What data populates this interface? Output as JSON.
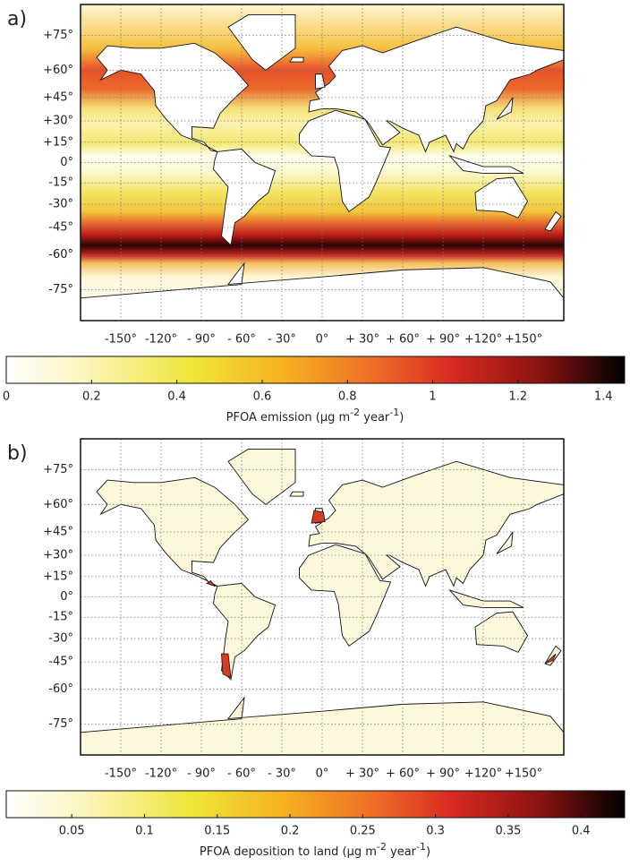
{
  "panels": [
    {
      "label": "a)",
      "lat_ticks": [
        {
          "value": 75,
          "label": "+75°"
        },
        {
          "value": 60,
          "label": "+60°"
        },
        {
          "value": 45,
          "label": "+45°"
        },
        {
          "value": 30,
          "label": "+30°"
        },
        {
          "value": 15,
          "label": "+15°"
        },
        {
          "value": 0,
          "label": "0°"
        },
        {
          "value": -15,
          "label": "-15°"
        },
        {
          "value": -30,
          "label": "-30°"
        },
        {
          "value": -45,
          "label": "-45°"
        },
        {
          "value": -60,
          "label": "-60°"
        },
        {
          "value": -75,
          "label": "-75°"
        }
      ],
      "lon_ticks": [
        {
          "value": -150,
          "label": "-150°"
        },
        {
          "value": -120,
          "label": "-120°"
        },
        {
          "value": -90,
          "label": "- 90°"
        },
        {
          "value": -60,
          "label": "- 60°"
        },
        {
          "value": -30,
          "label": "- 30°"
        },
        {
          "value": 0,
          "label": "0°"
        },
        {
          "value": 30,
          "label": "+ 30°"
        },
        {
          "value": 60,
          "label": "+ 60°"
        },
        {
          "value": 90,
          "label": "+ 90°"
        },
        {
          "value": 120,
          "label": "+120°"
        },
        {
          "value": 150,
          "label": "+150°"
        }
      ],
      "lonlim": [
        -180,
        180
      ],
      "latlim": [
        -85,
        85
      ],
      "colorbar": {
        "lim": [
          0,
          1.45
        ],
        "ticks": [
          0,
          0.2,
          0.4,
          0.6,
          0.8,
          1,
          1.2,
          1.4
        ],
        "title_parts": [
          "PFOA emission (μg m",
          "-2",
          " year",
          "-1",
          ")"
        ]
      }
    },
    {
      "label": "b)",
      "lat_ticks": [
        {
          "value": 75,
          "label": "+75°"
        },
        {
          "value": 60,
          "label": "+60°"
        },
        {
          "value": 45,
          "label": "+45°"
        },
        {
          "value": 30,
          "label": "+30°"
        },
        {
          "value": 15,
          "label": "+15°"
        },
        {
          "value": 0,
          "label": "0°"
        },
        {
          "value": -15,
          "label": "-15°"
        },
        {
          "value": -30,
          "label": "-30°"
        },
        {
          "value": -45,
          "label": "-45°"
        },
        {
          "value": -60,
          "label": "-60°"
        },
        {
          "value": -75,
          "label": "-75°"
        }
      ],
      "lon_ticks": [
        {
          "value": -150,
          "label": "-150°"
        },
        {
          "value": -120,
          "label": "-120°"
        },
        {
          "value": -90,
          "label": "- 90°"
        },
        {
          "value": -60,
          "label": "- 60°"
        },
        {
          "value": -30,
          "label": "- 30°"
        },
        {
          "value": 0,
          "label": "0°"
        },
        {
          "value": 30,
          "label": "+ 30°"
        },
        {
          "value": 60,
          "label": "+ 60°"
        },
        {
          "value": 90,
          "label": "+ 90°"
        },
        {
          "value": 120,
          "label": "+120°"
        },
        {
          "value": 150,
          "label": "+150°"
        }
      ],
      "lonlim": [
        -180,
        180
      ],
      "latlim": [
        -85,
        85
      ],
      "colorbar": {
        "lim": [
          0.005,
          0.43
        ],
        "ticks": [
          0.05,
          0.1,
          0.15,
          0.2,
          0.25,
          0.3,
          0.35,
          0.4
        ],
        "title_parts": [
          "PFOA deposition to land (μg m",
          "-2",
          " year",
          "-1",
          ")"
        ]
      }
    }
  ]
}
